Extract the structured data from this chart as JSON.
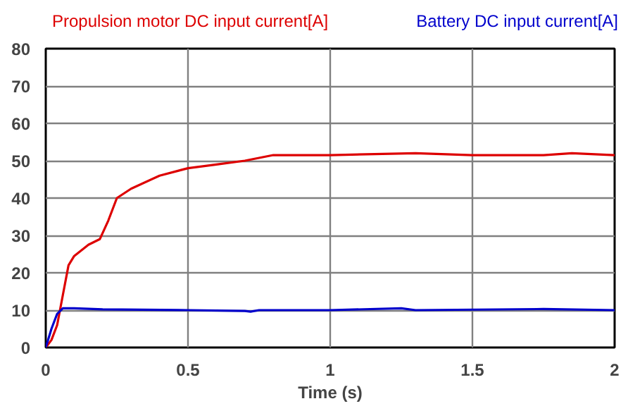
{
  "chart_data": {
    "type": "line",
    "xlabel": "Time (s)",
    "xlim": [
      0,
      2
    ],
    "xticks": [
      0,
      0.5,
      1,
      1.5,
      2
    ],
    "ylim": [
      0,
      80
    ],
    "yticks": [
      0,
      10,
      20,
      30,
      40,
      50,
      60,
      70,
      80
    ],
    "grid": true,
    "series": [
      {
        "name": "Propulsion motor DC input current[A]",
        "color": "#dd0000",
        "x": [
          0,
          0.02,
          0.04,
          0.06,
          0.08,
          0.1,
          0.15,
          0.19,
          0.22,
          0.25,
          0.3,
          0.4,
          0.5,
          0.6,
          0.7,
          0.8,
          1.0,
          1.3,
          1.5,
          1.75,
          1.85,
          2.0
        ],
        "values": [
          0,
          2,
          6,
          14,
          22,
          24.5,
          27.5,
          29,
          34,
          40,
          42.5,
          46,
          48,
          49,
          50,
          51.5,
          51.5,
          52,
          51.5,
          51.5,
          52,
          51.5
        ]
      },
      {
        "name": "Battery DC input current[A]",
        "color": "#0000cc",
        "x": [
          0,
          0.02,
          0.04,
          0.06,
          0.1,
          0.2,
          0.5,
          0.7,
          0.72,
          0.75,
          1.0,
          1.25,
          1.3,
          1.75,
          2.0
        ],
        "values": [
          0,
          5,
          9,
          10.5,
          10.5,
          10.2,
          10,
          9.8,
          9.6,
          10,
          10,
          10.5,
          10,
          10.3,
          10
        ]
      }
    ]
  }
}
